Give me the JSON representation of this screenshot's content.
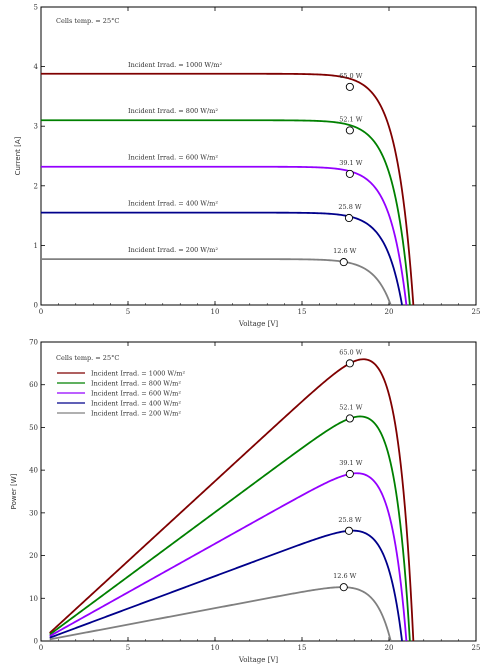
{
  "chart_data": [
    {
      "type": "line",
      "name": "iv-curves",
      "xlabel": "Voltage [V]",
      "ylabel": "Current [A]",
      "xlim": [
        0,
        25
      ],
      "ylim": [
        0,
        5
      ],
      "xticks": [
        "0",
        "5",
        "10",
        "15",
        "20",
        "25"
      ],
      "yticks": [
        "0",
        "1",
        "2",
        "3",
        "4",
        "5"
      ],
      "grid": false,
      "note": "Cells temp. = 25°C",
      "series": [
        {
          "name": "Incident Irrad. = 1000 W/m²",
          "color": "#7f0000",
          "isc": 3.88,
          "voc": 21.4,
          "mpp": {
            "v": 17.75,
            "i": 3.66,
            "label": "65.0  W"
          }
        },
        {
          "name": "Incident Irrad. = 800 W/m²",
          "color": "#008000",
          "isc": 3.1,
          "voc": 21.2,
          "mpp": {
            "v": 17.75,
            "i": 2.93,
            "label": "52.1  W"
          }
        },
        {
          "name": "Incident Irrad. = 600 W/m²",
          "color": "#9400ff",
          "isc": 2.32,
          "voc": 21.0,
          "mpp": {
            "v": 17.75,
            "i": 2.2,
            "label": "39.1  W"
          }
        },
        {
          "name": "Incident Irrad. = 400 W/m²",
          "color": "#00008b",
          "isc": 1.55,
          "voc": 20.75,
          "mpp": {
            "v": 17.7,
            "i": 1.46,
            "label": "25.8  W"
          }
        },
        {
          "name": "Incident Irrad. = 200 W/m²",
          "color": "#808080",
          "isc": 0.77,
          "voc": 20.1,
          "mpp": {
            "v": 17.4,
            "i": 0.72,
            "label": "12.6  W"
          }
        }
      ]
    },
    {
      "type": "line",
      "name": "pv-curves",
      "xlabel": "Voltage [V]",
      "ylabel": "Power [W]",
      "xlim": [
        0,
        25
      ],
      "ylim": [
        0,
        70
      ],
      "xticks": [
        "0",
        "5",
        "10",
        "15",
        "20",
        "25"
      ],
      "yticks": [
        "0",
        "10",
        "20",
        "30",
        "40",
        "50",
        "60",
        "70"
      ],
      "grid": false,
      "legend": "top-left",
      "note": "Cells temp. = 25°C",
      "series": [
        {
          "name": "Incident Irrad. = 1000 W/m²",
          "color": "#7f0000",
          "mpp": {
            "v": 17.75,
            "p": 65.0,
            "label": "65.0  W"
          }
        },
        {
          "name": "Incident Irrad. = 800 W/m²",
          "color": "#008000",
          "mpp": {
            "v": 17.75,
            "p": 52.1,
            "label": "52.1  W"
          }
        },
        {
          "name": "Incident Irrad. = 600 W/m²",
          "color": "#9400ff",
          "mpp": {
            "v": 17.75,
            "p": 39.1,
            "label": "39.1  W"
          }
        },
        {
          "name": "Incident Irrad. = 400 W/m²",
          "color": "#00008b",
          "mpp": {
            "v": 17.7,
            "p": 25.8,
            "label": "25.8  W"
          }
        },
        {
          "name": "Incident Irrad. = 200 W/m²",
          "color": "#808080",
          "mpp": {
            "v": 17.4,
            "p": 12.6,
            "label": "12.6  W"
          }
        }
      ]
    }
  ]
}
